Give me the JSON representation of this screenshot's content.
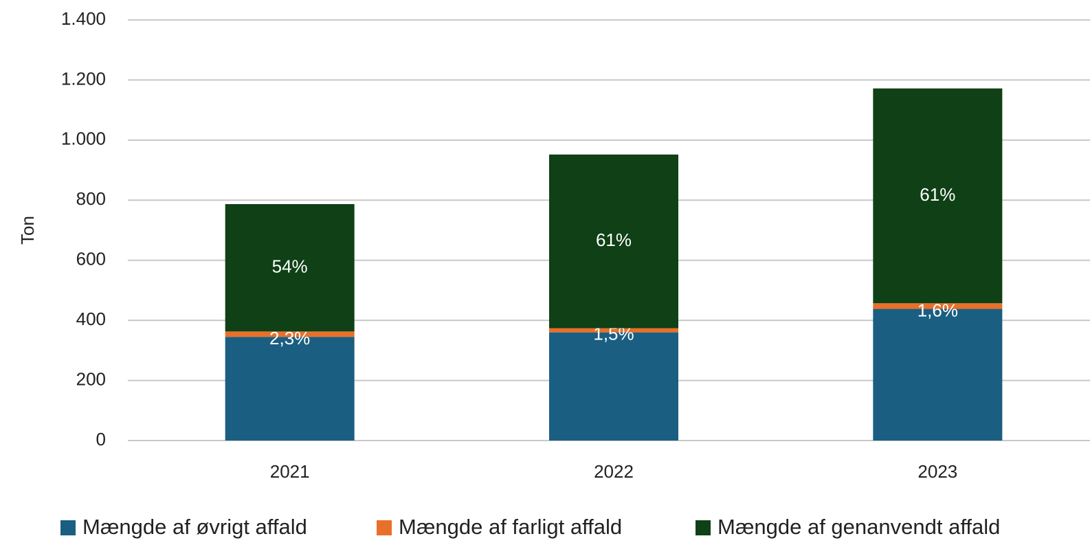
{
  "chart_data": {
    "type": "stacked_bar",
    "y_label": "Ton",
    "categories": [
      "2021",
      "2022",
      "2023"
    ],
    "series": [
      {
        "name": "Mængde af øvrigt affald",
        "color": "#1a5e82",
        "values": [
          345,
          360,
          438
        ]
      },
      {
        "name": "Mængde af farligt affald",
        "color": "#e8702a",
        "values": [
          18,
          14,
          19
        ],
        "data_labels": [
          "2,3%",
          "1,5%",
          "1,6%"
        ]
      },
      {
        "name": "Mængde af genanvendt affald",
        "color": "#0f4016",
        "values": [
          424,
          578,
          715
        ],
        "data_labels": [
          "54%",
          "61%",
          "61%"
        ]
      }
    ],
    "ylim": [
      0,
      1400
    ],
    "yticks": [
      0,
      200,
      400,
      600,
      800,
      {
        "value": 1000,
        "label": "1.000"
      },
      {
        "value": 1200,
        "label": "1.200"
      },
      {
        "value": 1400,
        "label": "1.400"
      }
    ],
    "grid": true,
    "legend": "bottom"
  }
}
